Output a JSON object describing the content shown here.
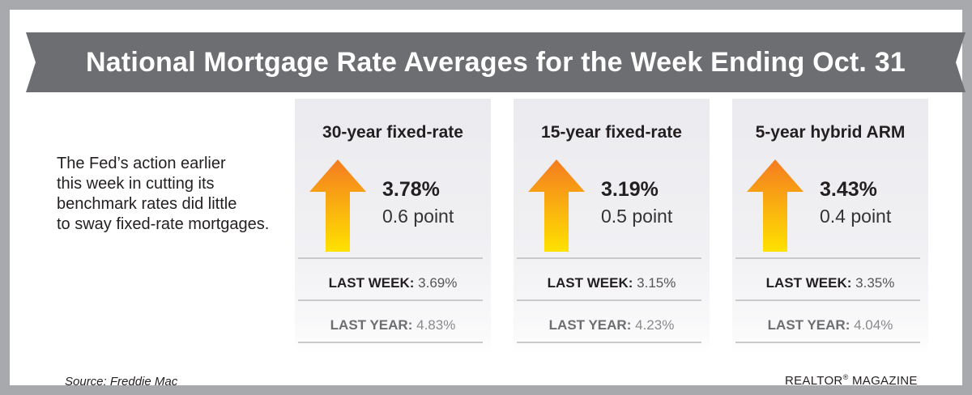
{
  "header": {
    "title": "National Mortgage Rate Averages for the Week Ending Oct. 31"
  },
  "intro": {
    "lines": [
      "The Fed’s action earlier",
      "this week in cutting its",
      "benchmark rates did little",
      "to sway fixed-rate mortgages."
    ]
  },
  "cards": [
    {
      "title": "30-year fixed-rate",
      "rate": "3.78%",
      "change": "0.6 point",
      "direction": "up",
      "last_week_label": "LAST WEEK:",
      "last_week_value": "3.69%",
      "last_year_label": "LAST YEAR:",
      "last_year_value": "4.83%"
    },
    {
      "title": "15-year fixed-rate",
      "rate": "3.19%",
      "change": "0.5 point",
      "direction": "up",
      "last_week_label": "LAST WEEK:",
      "last_week_value": "3.15%",
      "last_year_label": "LAST YEAR:",
      "last_year_value": "4.23%"
    },
    {
      "title": "5-year hybrid ARM",
      "rate": "3.43%",
      "change": "0.4 point",
      "direction": "up",
      "last_week_label": "LAST WEEK:",
      "last_week_value": "3.35%",
      "last_year_label": "LAST YEAR:",
      "last_year_value": "4.04%"
    }
  ],
  "footer": {
    "source": "Source: Freddie Mac",
    "brand": "REALTOR",
    "brand_mark": "®",
    "brand_suffix": " MAGAZINE"
  },
  "colors": {
    "banner": "#6d6e71",
    "frame": "#a7a9ac",
    "arrow_top": "#f47b20",
    "arrow_bottom": "#ffe200"
  },
  "icons": {
    "rate_direction": "up-arrow-icon"
  }
}
